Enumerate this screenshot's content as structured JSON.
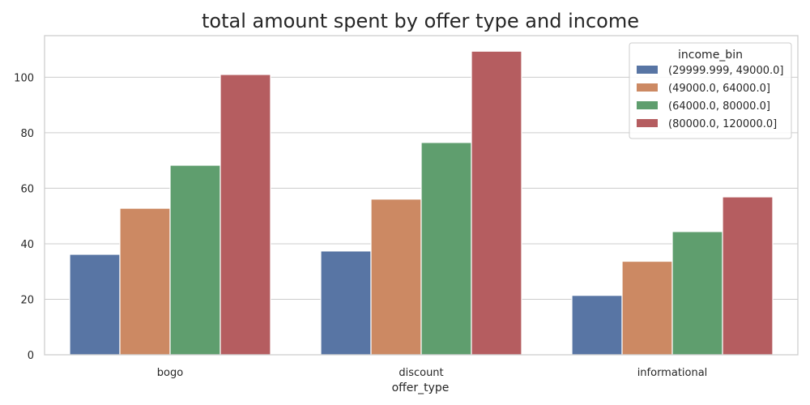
{
  "chart_data": {
    "type": "bar",
    "title": "total amount spent by offer type and income",
    "xlabel": "offer_type",
    "ylabel": "",
    "categories": [
      "bogo",
      "discount",
      "informational"
    ],
    "ylim": [
      0,
      115
    ],
    "yticks": [
      0,
      20,
      40,
      60,
      80,
      100
    ],
    "grid": "horizontal",
    "legend": {
      "title": "income_bin",
      "placement": "top-right"
    },
    "series": [
      {
        "name": "(29999.999, 49000.0]",
        "color": "#5875a4",
        "values": [
          36.2,
          37.4,
          21.4
        ]
      },
      {
        "name": "(49000.0, 64000.0]",
        "color": "#cc8963",
        "values": [
          52.8,
          56.1,
          33.7
        ]
      },
      {
        "name": "(64000.0, 80000.0]",
        "color": "#5f9e6e",
        "values": [
          68.3,
          76.5,
          44.4
        ]
      },
      {
        "name": "(80000.0, 120000.0]",
        "color": "#b55d60",
        "values": [
          101.0,
          109.4,
          56.9
        ]
      }
    ]
  }
}
